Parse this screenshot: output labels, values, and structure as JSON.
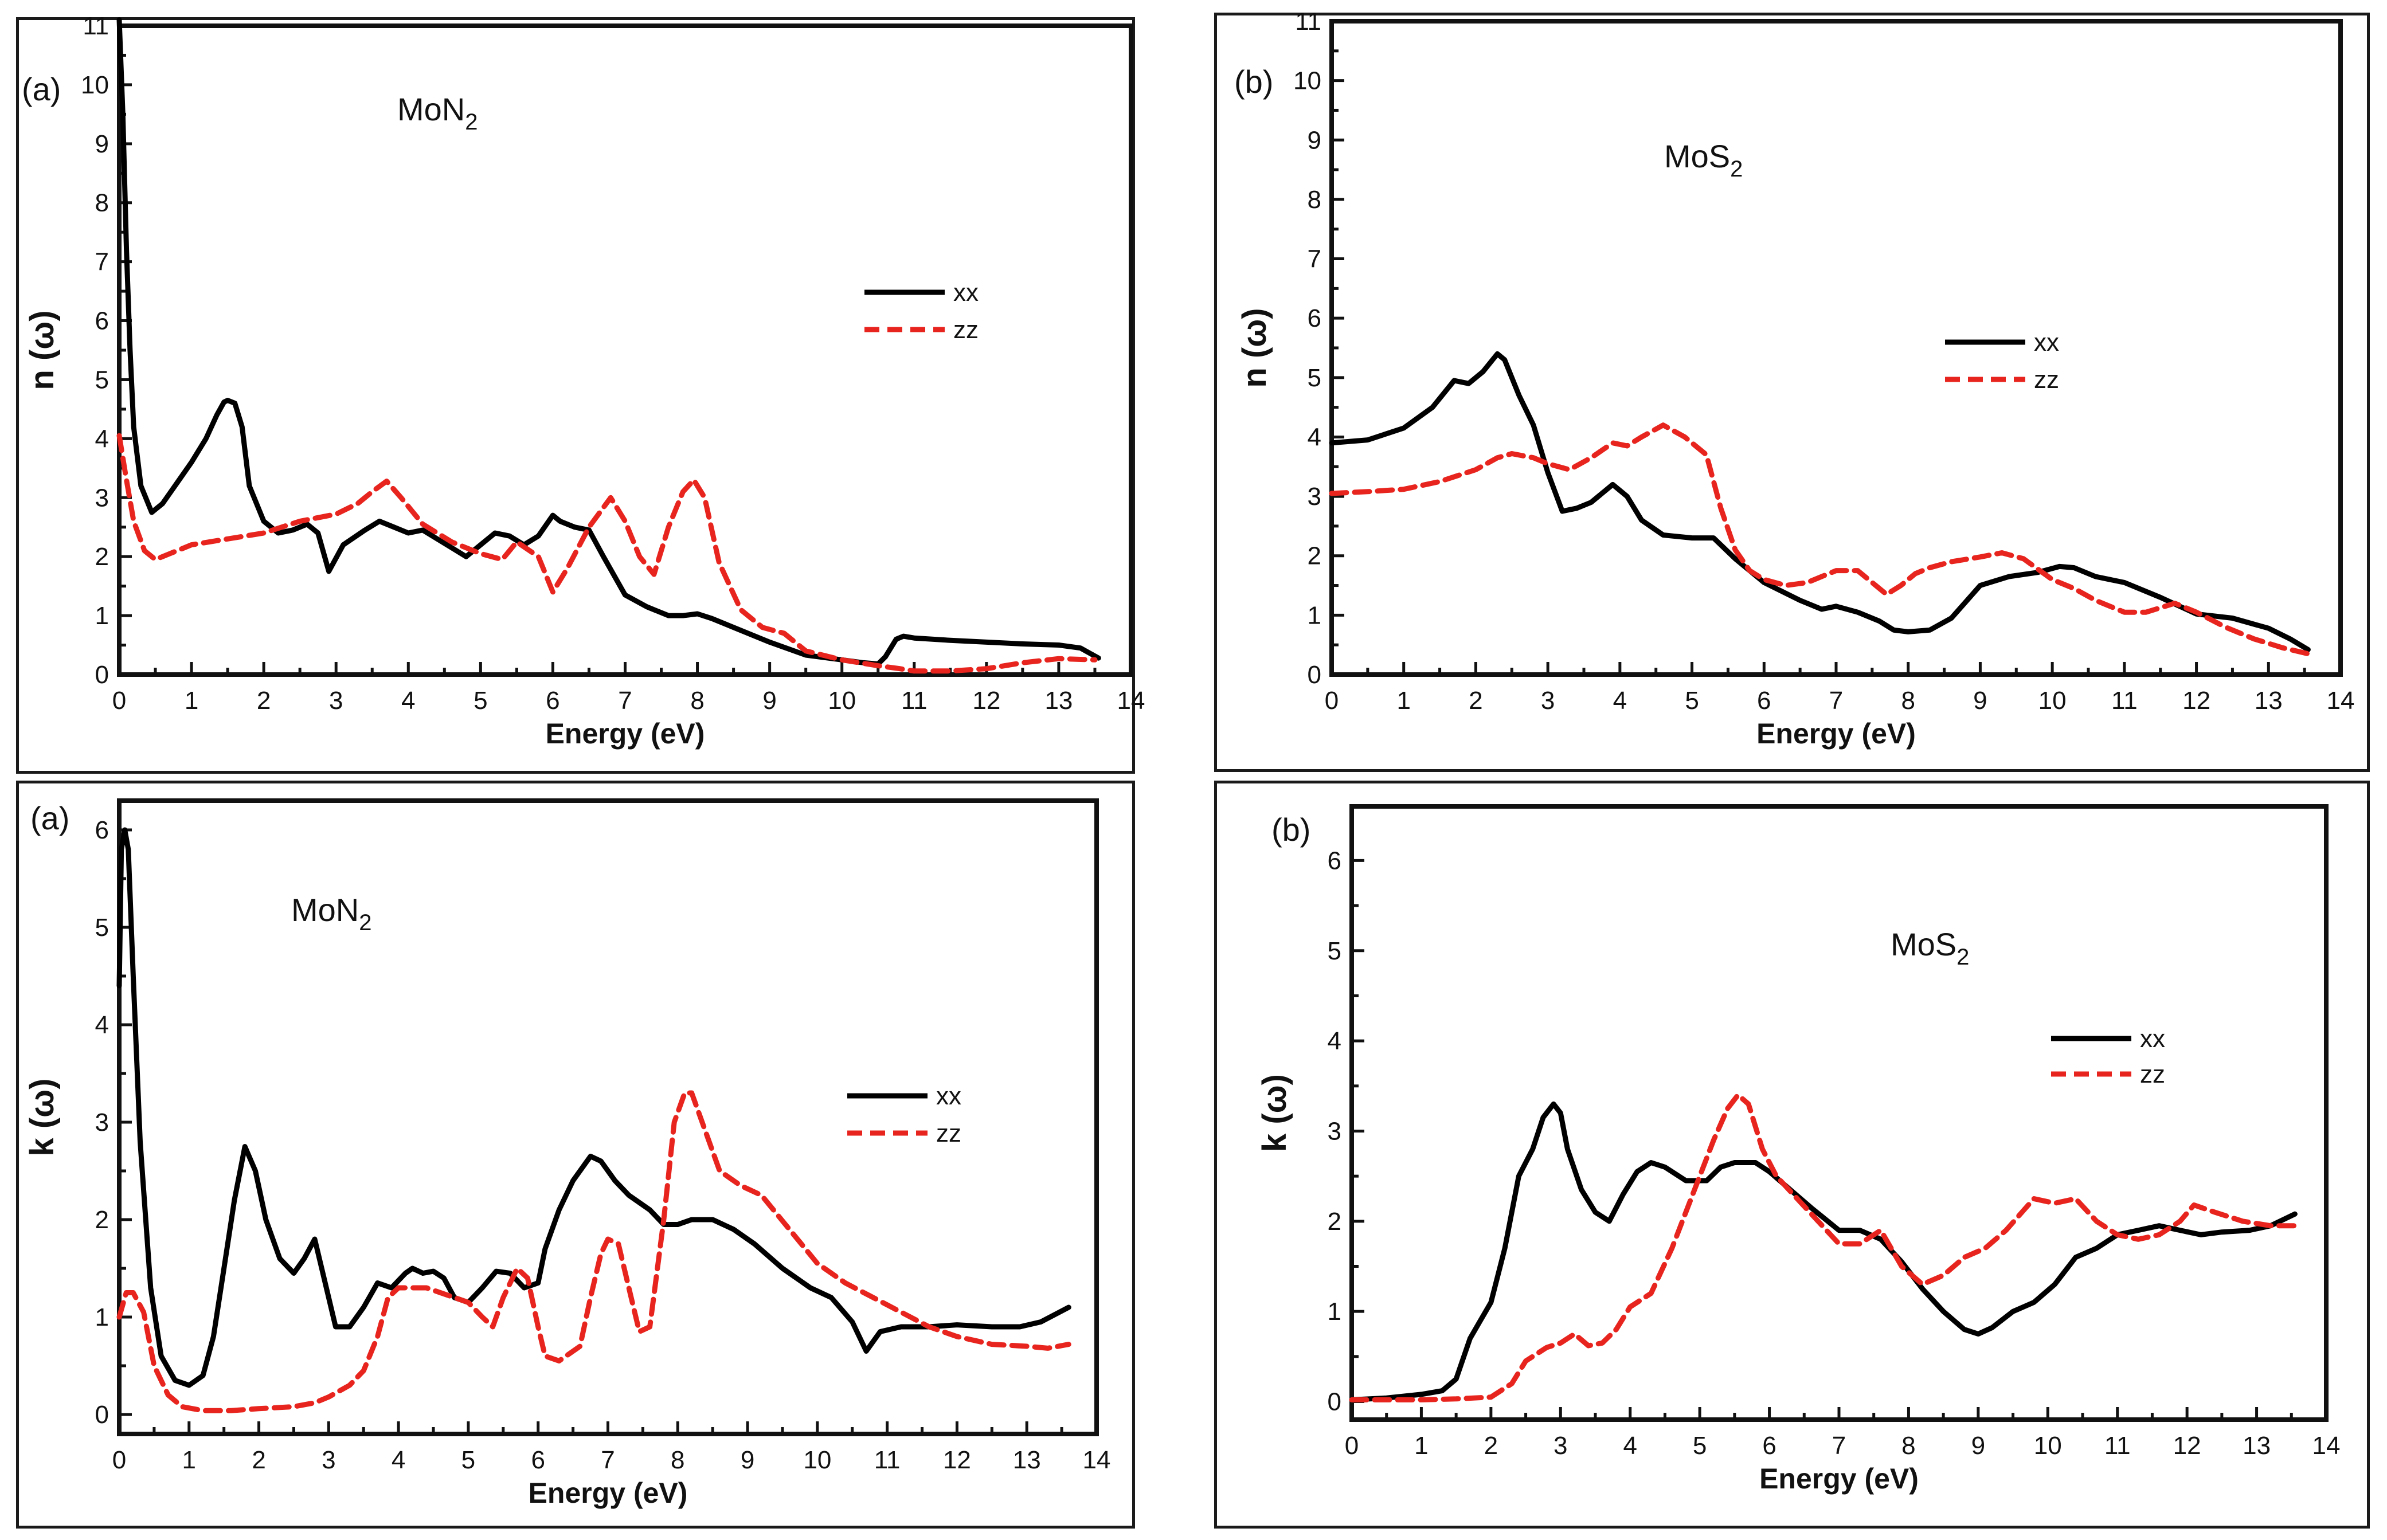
{
  "colors": {
    "xx": "#000000",
    "zz": "#e8241e"
  },
  "chart_data": [
    {
      "id": "nMoN2",
      "type": "line",
      "panel_tag": "(a)",
      "material": {
        "base": "MoN",
        "sub": "2"
      },
      "ylabel": "n (ω)",
      "xlabel": "Energy (eV)",
      "xlim": [
        0,
        14
      ],
      "ylim": [
        0,
        11
      ],
      "xticks": [
        0,
        1,
        2,
        3,
        4,
        5,
        6,
        7,
        8,
        9,
        10,
        11,
        12,
        13,
        14
      ],
      "yticks": [
        0,
        1,
        2,
        3,
        4,
        5,
        6,
        7,
        8,
        9,
        10,
        11
      ],
      "legend": {
        "position": "center-right",
        "entries": [
          "xx",
          "zz"
        ]
      },
      "series": [
        {
          "name": "xx",
          "style": "solid",
          "x": [
            0,
            0.05,
            0.1,
            0.15,
            0.2,
            0.3,
            0.45,
            0.6,
            0.8,
            1.0,
            1.2,
            1.35,
            1.45,
            1.5,
            1.6,
            1.7,
            1.8,
            2.0,
            2.2,
            2.4,
            2.6,
            2.75,
            2.9,
            3.1,
            3.4,
            3.6,
            3.8,
            4.0,
            4.2,
            4.4,
            4.6,
            4.8,
            5.0,
            5.2,
            5.4,
            5.6,
            5.8,
            6.0,
            6.1,
            6.3,
            6.5,
            6.7,
            7.0,
            7.3,
            7.6,
            7.8,
            8.0,
            8.2,
            8.5,
            9.0,
            9.5,
            10.0,
            10.3,
            10.5,
            10.6,
            10.75,
            10.85,
            11.0,
            11.5,
            12.0,
            12.5,
            13.0,
            13.3,
            13.55
          ],
          "y": [
            11.1,
            9.5,
            7.2,
            5.5,
            4.2,
            3.2,
            2.75,
            2.9,
            3.25,
            3.6,
            4.0,
            4.4,
            4.62,
            4.65,
            4.6,
            4.2,
            3.2,
            2.6,
            2.4,
            2.45,
            2.55,
            2.4,
            1.75,
            2.2,
            2.45,
            2.6,
            2.5,
            2.4,
            2.45,
            2.3,
            2.15,
            2.0,
            2.2,
            2.4,
            2.35,
            2.2,
            2.35,
            2.7,
            2.6,
            2.5,
            2.45,
            2.0,
            1.35,
            1.15,
            1.0,
            1.0,
            1.03,
            0.95,
            0.8,
            0.55,
            0.33,
            0.25,
            0.2,
            0.18,
            0.3,
            0.6,
            0.65,
            0.62,
            0.58,
            0.55,
            0.52,
            0.5,
            0.45,
            0.28
          ]
        },
        {
          "name": "zz",
          "style": "dashed",
          "x": [
            0,
            0.1,
            0.2,
            0.35,
            0.5,
            0.7,
            1.0,
            1.5,
            2.0,
            2.5,
            3.0,
            3.3,
            3.5,
            3.7,
            3.9,
            4.2,
            4.6,
            5.0,
            5.3,
            5.5,
            5.8,
            6.0,
            6.2,
            6.5,
            6.8,
            7.0,
            7.2,
            7.4,
            7.6,
            7.8,
            7.95,
            8.1,
            8.3,
            8.6,
            8.9,
            9.2,
            9.5,
            10.0,
            10.5,
            10.8,
            11.0,
            11.5,
            12.0,
            12.5,
            13.0,
            13.5
          ],
          "y": [
            4.05,
            3.3,
            2.6,
            2.1,
            1.95,
            2.05,
            2.2,
            2.3,
            2.4,
            2.6,
            2.72,
            2.9,
            3.1,
            3.28,
            3.0,
            2.55,
            2.25,
            2.05,
            1.95,
            2.25,
            2.0,
            1.4,
            1.8,
            2.5,
            3.0,
            2.6,
            2.0,
            1.7,
            2.5,
            3.1,
            3.3,
            3.0,
            1.9,
            1.1,
            0.8,
            0.7,
            0.4,
            0.25,
            0.15,
            0.1,
            0.06,
            0.06,
            0.1,
            0.2,
            0.27,
            0.25
          ]
        }
      ]
    },
    {
      "id": "nMoS2",
      "type": "line",
      "panel_tag": "(b)",
      "material": {
        "base": "MoS",
        "sub": "2"
      },
      "ylabel": "n (ω)",
      "xlabel": "Energy (eV)",
      "xlim": [
        0,
        14
      ],
      "ylim": [
        0,
        11
      ],
      "xticks": [
        0,
        1,
        2,
        3,
        4,
        5,
        6,
        7,
        8,
        9,
        10,
        11,
        12,
        13,
        14
      ],
      "yticks": [
        0,
        1,
        2,
        3,
        4,
        5,
        6,
        7,
        8,
        9,
        10,
        11
      ],
      "legend": {
        "position": "center-right",
        "entries": [
          "xx",
          "zz"
        ]
      },
      "series": [
        {
          "name": "xx",
          "style": "solid",
          "x": [
            0,
            0.5,
            1.0,
            1.4,
            1.7,
            1.9,
            2.1,
            2.3,
            2.4,
            2.6,
            2.8,
            3.0,
            3.2,
            3.4,
            3.6,
            3.9,
            4.1,
            4.3,
            4.6,
            5.0,
            5.3,
            5.6,
            6.0,
            6.5,
            6.8,
            7.0,
            7.3,
            7.6,
            7.8,
            8.0,
            8.3,
            8.6,
            9.0,
            9.4,
            9.8,
            10.1,
            10.3,
            10.6,
            11.0,
            11.5,
            12.0,
            12.5,
            13.0,
            13.3,
            13.55
          ],
          "y": [
            3.9,
            3.95,
            4.15,
            4.5,
            4.95,
            4.9,
            5.1,
            5.4,
            5.3,
            4.7,
            4.2,
            3.4,
            2.75,
            2.8,
            2.9,
            3.2,
            3.0,
            2.6,
            2.35,
            2.3,
            2.3,
            1.95,
            1.55,
            1.25,
            1.1,
            1.15,
            1.05,
            0.9,
            0.75,
            0.72,
            0.75,
            0.95,
            1.5,
            1.65,
            1.72,
            1.82,
            1.8,
            1.65,
            1.55,
            1.3,
            1.02,
            0.95,
            0.78,
            0.6,
            0.42
          ]
        },
        {
          "name": "zz",
          "style": "dashed",
          "x": [
            0,
            0.5,
            1.0,
            1.5,
            2.0,
            2.3,
            2.5,
            2.8,
            3.0,
            3.3,
            3.6,
            3.9,
            4.1,
            4.3,
            4.6,
            4.9,
            5.2,
            5.4,
            5.6,
            5.8,
            6.0,
            6.3,
            6.6,
            7.0,
            7.3,
            7.5,
            7.7,
            7.9,
            8.1,
            8.3,
            8.6,
            9.0,
            9.3,
            9.6,
            10.0,
            10.3,
            10.6,
            11.0,
            11.3,
            11.7,
            12.0,
            12.4,
            12.8,
            13.2,
            13.55
          ],
          "y": [
            3.05,
            3.08,
            3.12,
            3.25,
            3.45,
            3.65,
            3.72,
            3.65,
            3.55,
            3.45,
            3.65,
            3.9,
            3.85,
            4.0,
            4.2,
            4.0,
            3.7,
            2.8,
            2.1,
            1.75,
            1.6,
            1.5,
            1.55,
            1.75,
            1.75,
            1.55,
            1.35,
            1.5,
            1.7,
            1.8,
            1.9,
            1.98,
            2.05,
            1.95,
            1.6,
            1.45,
            1.25,
            1.05,
            1.05,
            1.2,
            1.05,
            0.8,
            0.6,
            0.45,
            0.35
          ]
        }
      ]
    },
    {
      "id": "kMoN2",
      "type": "line",
      "panel_tag": "(a)",
      "material": {
        "base": "MoN",
        "sub": "2"
      },
      "ylabel": "k (ω)",
      "xlabel": "Energy (eV)",
      "xlim": [
        0,
        14
      ],
      "ylim": [
        -0.2,
        6.3
      ],
      "xticks": [
        0,
        1,
        2,
        3,
        4,
        5,
        6,
        7,
        8,
        9,
        10,
        11,
        12,
        13,
        14
      ],
      "yticks": [
        0,
        1,
        2,
        3,
        4,
        5,
        6
      ],
      "legend": {
        "position": "center-right",
        "entries": [
          "xx",
          "zz"
        ]
      },
      "series": [
        {
          "name": "xx",
          "style": "solid",
          "x": [
            0,
            0.03,
            0.08,
            0.13,
            0.2,
            0.3,
            0.45,
            0.6,
            0.8,
            1.0,
            1.2,
            1.35,
            1.5,
            1.65,
            1.8,
            1.95,
            2.1,
            2.3,
            2.5,
            2.65,
            2.8,
            2.9,
            3.1,
            3.3,
            3.5,
            3.7,
            3.9,
            4.1,
            4.2,
            4.35,
            4.5,
            4.65,
            4.8,
            5.0,
            5.2,
            5.4,
            5.6,
            5.8,
            6.0,
            6.1,
            6.3,
            6.5,
            6.75,
            6.9,
            7.1,
            7.3,
            7.6,
            7.8,
            8.0,
            8.2,
            8.5,
            8.8,
            9.1,
            9.5,
            9.9,
            10.2,
            10.5,
            10.7,
            10.9,
            11.2,
            11.6,
            12.0,
            12.5,
            12.9,
            13.2,
            13.6
          ],
          "y": [
            4.4,
            5.8,
            6.0,
            5.8,
            4.5,
            2.8,
            1.3,
            0.6,
            0.35,
            0.3,
            0.4,
            0.8,
            1.5,
            2.2,
            2.75,
            2.5,
            2.0,
            1.6,
            1.45,
            1.6,
            1.8,
            1.5,
            0.9,
            0.9,
            1.1,
            1.35,
            1.3,
            1.45,
            1.5,
            1.45,
            1.47,
            1.4,
            1.2,
            1.15,
            1.3,
            1.47,
            1.45,
            1.3,
            1.35,
            1.7,
            2.1,
            2.4,
            2.65,
            2.6,
            2.4,
            2.25,
            2.1,
            1.95,
            1.95,
            2.0,
            2.0,
            1.9,
            1.75,
            1.5,
            1.3,
            1.2,
            0.95,
            0.65,
            0.85,
            0.9,
            0.9,
            0.92,
            0.9,
            0.9,
            0.95,
            1.1
          ]
        },
        {
          "name": "zz",
          "style": "dashed",
          "x": [
            0,
            0.1,
            0.2,
            0.35,
            0.5,
            0.7,
            0.9,
            1.2,
            1.6,
            2.0,
            2.5,
            2.8,
            3.0,
            3.3,
            3.5,
            3.7,
            3.85,
            4.0,
            4.4,
            4.8,
            5.0,
            5.2,
            5.35,
            5.5,
            5.7,
            5.85,
            6.0,
            6.1,
            6.3,
            6.6,
            6.75,
            6.9,
            7.0,
            7.15,
            7.3,
            7.45,
            7.6,
            7.8,
            7.95,
            8.1,
            8.2,
            8.4,
            8.6,
            8.9,
            9.2,
            9.6,
            10.0,
            10.4,
            10.8,
            11.2,
            11.6,
            12.0,
            12.5,
            13.0,
            13.3,
            13.6
          ],
          "y": [
            1.0,
            1.25,
            1.25,
            1.05,
            0.5,
            0.2,
            0.08,
            0.04,
            0.04,
            0.06,
            0.08,
            0.12,
            0.18,
            0.3,
            0.45,
            0.8,
            1.2,
            1.3,
            1.3,
            1.2,
            1.15,
            1.0,
            0.9,
            1.2,
            1.5,
            1.4,
            0.9,
            0.6,
            0.55,
            0.7,
            1.2,
            1.65,
            1.8,
            1.75,
            1.3,
            0.85,
            0.9,
            2.0,
            3.0,
            3.3,
            3.3,
            2.9,
            2.5,
            2.35,
            2.25,
            1.9,
            1.55,
            1.35,
            1.2,
            1.05,
            0.9,
            0.8,
            0.72,
            0.7,
            0.68,
            0.72
          ]
        }
      ]
    },
    {
      "id": "kMoS2",
      "type": "line",
      "panel_tag": "(b)",
      "material": {
        "base": "MoS",
        "sub": "2"
      },
      "ylabel": "k (ω)",
      "xlabel": "Energy (eV)",
      "xlim": [
        0,
        14
      ],
      "ylim": [
        -0.2,
        6.6
      ],
      "xticks": [
        0,
        1,
        2,
        3,
        4,
        5,
        6,
        7,
        8,
        9,
        10,
        11,
        12,
        13,
        14
      ],
      "yticks": [
        0,
        1,
        2,
        3,
        4,
        5,
        6
      ],
      "legend": {
        "position": "center-right",
        "entries": [
          "xx",
          "zz"
        ]
      },
      "series": [
        {
          "name": "xx",
          "style": "solid",
          "x": [
            0,
            0.5,
            1.0,
            1.3,
            1.5,
            1.7,
            1.85,
            2.0,
            2.2,
            2.4,
            2.6,
            2.75,
            2.9,
            3.0,
            3.1,
            3.3,
            3.5,
            3.7,
            3.9,
            4.1,
            4.3,
            4.5,
            4.8,
            5.1,
            5.3,
            5.5,
            5.8,
            6.0,
            6.3,
            6.6,
            7.0,
            7.3,
            7.6,
            7.9,
            8.2,
            8.5,
            8.8,
            9.0,
            9.2,
            9.5,
            9.8,
            10.1,
            10.4,
            10.7,
            11.0,
            11.3,
            11.6,
            11.9,
            12.2,
            12.5,
            12.9,
            13.2,
            13.55
          ],
          "y": [
            0.02,
            0.04,
            0.08,
            0.12,
            0.25,
            0.7,
            0.9,
            1.1,
            1.7,
            2.5,
            2.8,
            3.15,
            3.3,
            3.2,
            2.8,
            2.35,
            2.1,
            2.0,
            2.3,
            2.55,
            2.65,
            2.6,
            2.45,
            2.45,
            2.6,
            2.65,
            2.65,
            2.55,
            2.35,
            2.15,
            1.9,
            1.9,
            1.8,
            1.55,
            1.25,
            1.0,
            0.8,
            0.75,
            0.82,
            1.0,
            1.1,
            1.3,
            1.6,
            1.7,
            1.85,
            1.9,
            1.95,
            1.9,
            1.85,
            1.88,
            1.9,
            1.95,
            2.08
          ]
        },
        {
          "name": "zz",
          "style": "dashed",
          "x": [
            0,
            0.5,
            1.0,
            1.5,
            2.0,
            2.3,
            2.5,
            2.8,
            3.0,
            3.2,
            3.4,
            3.6,
            3.8,
            4.0,
            4.3,
            4.6,
            4.9,
            5.2,
            5.4,
            5.55,
            5.7,
            5.9,
            6.1,
            6.4,
            6.7,
            7.0,
            7.3,
            7.6,
            7.9,
            8.2,
            8.5,
            8.8,
            9.1,
            9.4,
            9.8,
            10.1,
            10.4,
            10.7,
            11.0,
            11.3,
            11.6,
            11.9,
            12.1,
            12.4,
            12.8,
            13.2,
            13.55
          ],
          "y": [
            0.02,
            0.02,
            0.02,
            0.03,
            0.05,
            0.2,
            0.45,
            0.6,
            0.65,
            0.75,
            0.62,
            0.65,
            0.8,
            1.05,
            1.2,
            1.7,
            2.3,
            2.9,
            3.25,
            3.4,
            3.3,
            2.8,
            2.5,
            2.25,
            2.0,
            1.75,
            1.75,
            1.9,
            1.5,
            1.3,
            1.4,
            1.6,
            1.7,
            1.9,
            2.25,
            2.2,
            2.25,
            2.0,
            1.85,
            1.8,
            1.85,
            2.0,
            2.18,
            2.1,
            2.0,
            1.95,
            1.95
          ]
        }
      ]
    }
  ]
}
